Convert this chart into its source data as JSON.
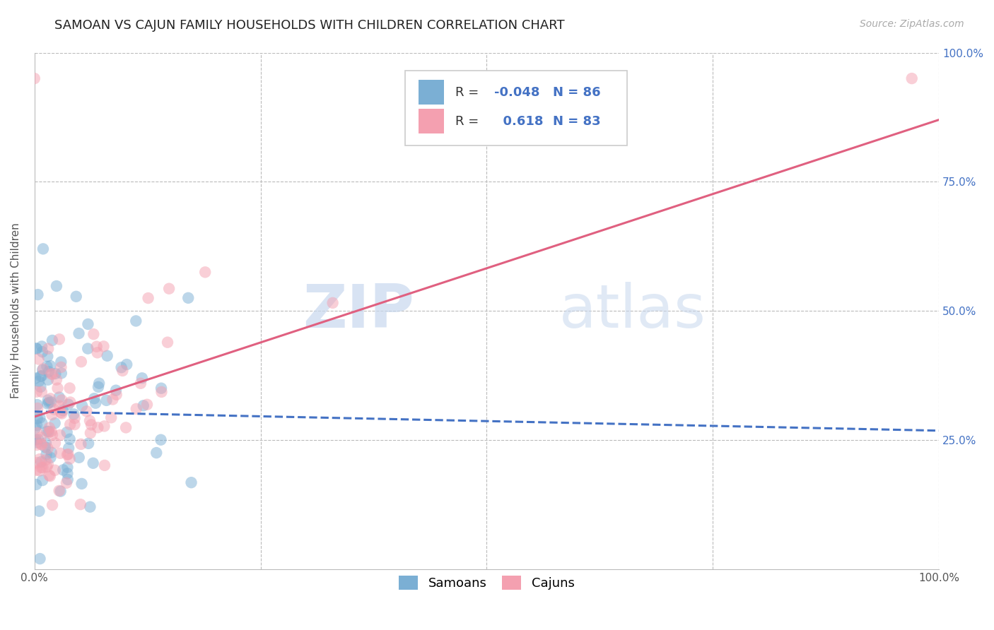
{
  "title": "SAMOAN VS CAJUN FAMILY HOUSEHOLDS WITH CHILDREN CORRELATION CHART",
  "source": "Source: ZipAtlas.com",
  "ylabel": "Family Households with Children",
  "xlabel": "",
  "legend_label_samoans": "Samoans",
  "legend_label_cajuns": "Cajuns",
  "R_samoans": -0.048,
  "N_samoans": 86,
  "R_cajuns": 0.618,
  "N_cajuns": 83,
  "samoan_color": "#7bafd4",
  "cajun_color": "#f4a0b0",
  "samoan_line_color": "#4472c4",
  "cajun_line_color": "#e06080",
  "background_color": "#ffffff",
  "grid_color": "#bbbbbb",
  "xlim": [
    0.0,
    1.0
  ],
  "ylim": [
    0.0,
    1.0
  ],
  "x_ticks": [
    0.0,
    0.25,
    0.5,
    0.75,
    1.0
  ],
  "x_tick_labels": [
    "0.0%",
    "",
    "",
    "",
    "100.0%"
  ],
  "y_ticks": [
    0.0,
    0.25,
    0.5,
    0.75,
    1.0
  ],
  "y_tick_labels_right": [
    "",
    "25.0%",
    "50.0%",
    "75.0%",
    "100.0%"
  ],
  "title_fontsize": 13,
  "source_fontsize": 10,
  "label_fontsize": 11,
  "tick_fontsize": 11,
  "legend_fontsize": 13,
  "watermark_zip": "ZIP",
  "watermark_atlas": "atlas",
  "samoan_line_start_y": 0.305,
  "samoan_line_end_y": 0.268,
  "cajun_line_start_y": 0.295,
  "cajun_line_end_y": 0.87
}
